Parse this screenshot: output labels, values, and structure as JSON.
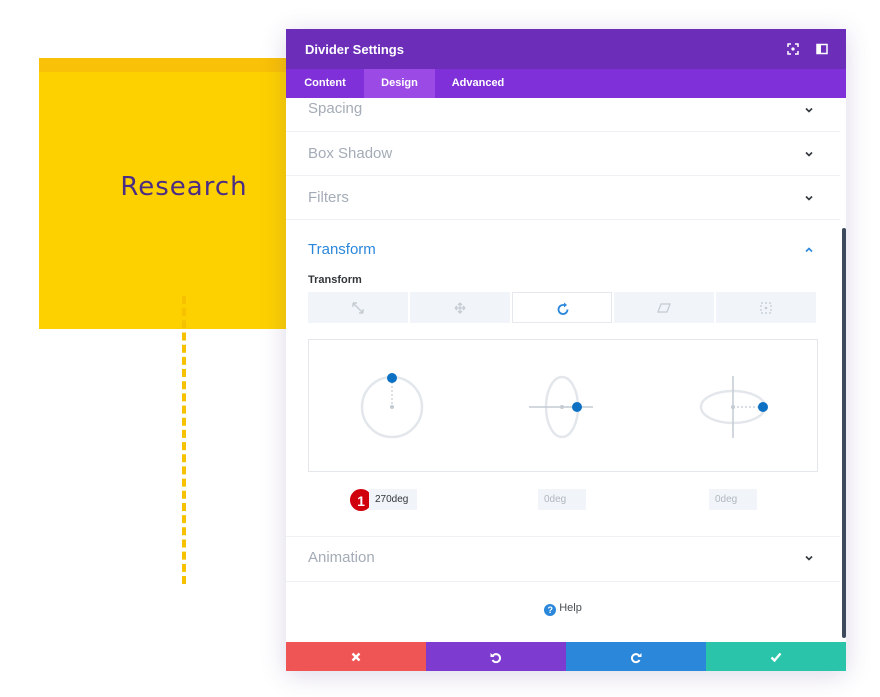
{
  "canvas": {
    "card_text": "Research"
  },
  "modal": {
    "title": "Divider Settings",
    "header_icons": [
      "fullscreen-icon",
      "sidebar-toggle-icon"
    ],
    "tabs": [
      {
        "label": "Content",
        "active": false
      },
      {
        "label": "Design",
        "active": true
      },
      {
        "label": "Advanced",
        "active": false
      }
    ],
    "sections": {
      "spacing": "Spacing",
      "box_shadow": "Box Shadow",
      "filters": "Filters",
      "transform": "Transform",
      "animation": "Animation"
    },
    "transform": {
      "sub_label": "Transform",
      "tool_tabs": [
        "scale-icon",
        "translate-icon",
        "rotate-icon",
        "skew-icon",
        "origin-icon"
      ],
      "active_tool": "rotate-icon",
      "rotate_values": [
        {
          "value": "270deg",
          "placeholder": ""
        },
        {
          "value": "",
          "placeholder": "0deg"
        },
        {
          "value": "",
          "placeholder": "0deg"
        }
      ],
      "badge": "1"
    },
    "help_label": "Help",
    "footer_buttons": [
      "close-icon",
      "undo-icon",
      "redo-icon",
      "save-check-icon"
    ],
    "colors": {
      "header": "#6c2eb9",
      "tabs": "#8030d8",
      "tab_active": "#9b4ae6",
      "accent_blue": "#2b87da",
      "cancel": "#ef5555",
      "undo": "#7e3bd0",
      "redo": "#2b87da",
      "save": "#29c4a9",
      "card": "#fdd100"
    }
  }
}
